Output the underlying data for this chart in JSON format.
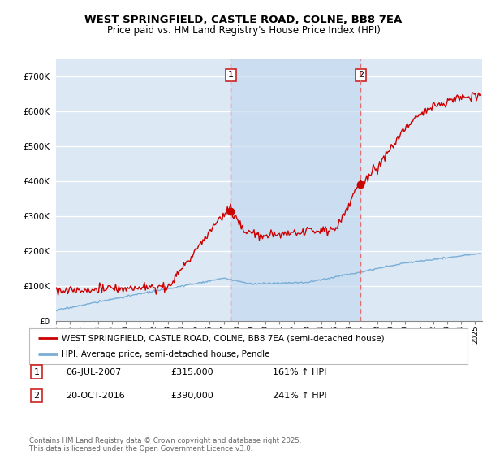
{
  "title": "WEST SPRINGFIELD, CASTLE ROAD, COLNE, BB8 7EA",
  "subtitle": "Price paid vs. HM Land Registry's House Price Index (HPI)",
  "ylim": [
    0,
    750000
  ],
  "yticks": [
    0,
    100000,
    200000,
    300000,
    400000,
    500000,
    600000,
    700000
  ],
  "ytick_labels": [
    "£0",
    "£100K",
    "£200K",
    "£300K",
    "£400K",
    "£500K",
    "£600K",
    "£700K"
  ],
  "xlim_start": 1995.0,
  "xlim_end": 2025.5,
  "xticks": [
    1995,
    1996,
    1997,
    1998,
    1999,
    2000,
    2001,
    2002,
    2003,
    2004,
    2005,
    2006,
    2007,
    2008,
    2009,
    2010,
    2011,
    2012,
    2013,
    2014,
    2015,
    2016,
    2017,
    2018,
    2019,
    2020,
    2021,
    2022,
    2023,
    2024,
    2025
  ],
  "background_color": "#dce9f5",
  "shaded_region_color": "#c5daf0",
  "line1_color": "#cc0000",
  "line2_color": "#7aaed6",
  "vline_color": "#e07070",
  "marker1_date": 2007.51,
  "marker1_value": 315000,
  "marker1_label": "1",
  "marker2_date": 2016.8,
  "marker2_value": 390000,
  "marker2_label": "2",
  "legend1_label": "WEST SPRINGFIELD, CASTLE ROAD, COLNE, BB8 7EA (semi-detached house)",
  "legend2_label": "HPI: Average price, semi-detached house, Pendle",
  "annotation1_num": "1",
  "annotation1_date": "06-JUL-2007",
  "annotation1_price": "£315,000",
  "annotation1_hpi": "161% ↑ HPI",
  "annotation2_num": "2",
  "annotation2_date": "20-OCT-2016",
  "annotation2_price": "£390,000",
  "annotation2_hpi": "241% ↑ HPI",
  "footer": "Contains HM Land Registry data © Crown copyright and database right 2025.\nThis data is licensed under the Open Government Licence v3.0.",
  "title_fontsize": 9.5,
  "subtitle_fontsize": 8.5
}
